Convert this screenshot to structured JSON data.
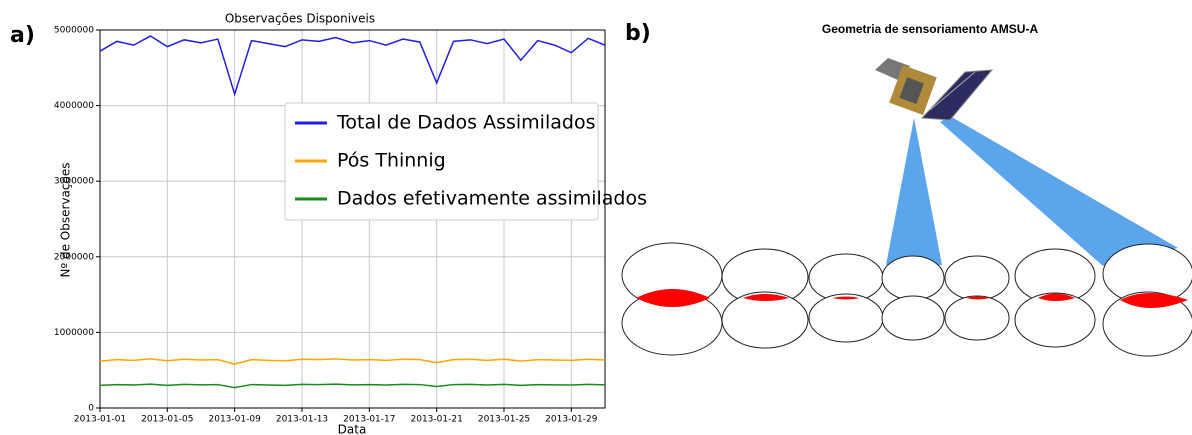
{
  "panels": [
    "a)",
    "b)"
  ],
  "chart_data": {
    "type": "line",
    "title": "Observações Disponiveis",
    "x_label": "Data",
    "y_label": "Nº de Observações",
    "x": [
      "2013-01-01",
      "2013-01-02",
      "2013-01-03",
      "2013-01-04",
      "2013-01-05",
      "2013-01-06",
      "2013-01-07",
      "2013-01-08",
      "2013-01-09",
      "2013-01-10",
      "2013-01-11",
      "2013-01-12",
      "2013-01-13",
      "2013-01-14",
      "2013-01-15",
      "2013-01-16",
      "2013-01-17",
      "2013-01-18",
      "2013-01-19",
      "2013-01-20",
      "2013-01-21",
      "2013-01-22",
      "2013-01-23",
      "2013-01-24",
      "2013-01-25",
      "2013-01-26",
      "2013-01-27",
      "2013-01-28",
      "2013-01-29",
      "2013-01-30",
      "2013-01-31"
    ],
    "series": [
      {
        "name": "Total de Dados Assimilados",
        "color": "#1f1fe8",
        "values": [
          4720000,
          4850000,
          4800000,
          4920000,
          4780000,
          4870000,
          4830000,
          4880000,
          4150000,
          4860000,
          4820000,
          4780000,
          4870000,
          4850000,
          4900000,
          4830000,
          4860000,
          4800000,
          4880000,
          4840000,
          4300000,
          4850000,
          4870000,
          4820000,
          4880000,
          4600000,
          4860000,
          4800000,
          4700000,
          4890000,
          4800000
        ]
      },
      {
        "name": "Pós Thinnig",
        "color": "#ffa500",
        "values": [
          620000,
          640000,
          630000,
          650000,
          625000,
          645000,
          635000,
          640000,
          580000,
          640000,
          630000,
          625000,
          645000,
          640000,
          650000,
          635000,
          640000,
          630000,
          645000,
          640000,
          600000,
          640000,
          645000,
          630000,
          645000,
          620000,
          640000,
          635000,
          630000,
          645000,
          635000
        ]
      },
      {
        "name": "Dados efetivamente assimilados",
        "color": "#1a8a1a",
        "values": [
          300000,
          310000,
          305000,
          315000,
          300000,
          312000,
          306000,
          310000,
          270000,
          310000,
          305000,
          300000,
          312000,
          310000,
          315000,
          306000,
          310000,
          305000,
          312000,
          310000,
          285000,
          310000,
          312000,
          305000,
          312000,
          300000,
          310000,
          306000,
          305000,
          312000,
          306000
        ]
      }
    ],
    "xlim": [
      "2013-01-01",
      "2013-01-31"
    ],
    "xticks": [
      "2013-01-01",
      "2013-01-05",
      "2013-01-09",
      "2013-01-13",
      "2013-01-17",
      "2013-01-21",
      "2013-01-25",
      "2013-01-29"
    ],
    "ylim": [
      0,
      5000000
    ],
    "yticks": [
      0,
      1000000,
      2000000,
      3000000,
      4000000,
      5000000
    ],
    "grid": true,
    "legend": "upper right"
  },
  "diagram": {
    "title": "Geometria de sensoriamento AMSU-A"
  }
}
